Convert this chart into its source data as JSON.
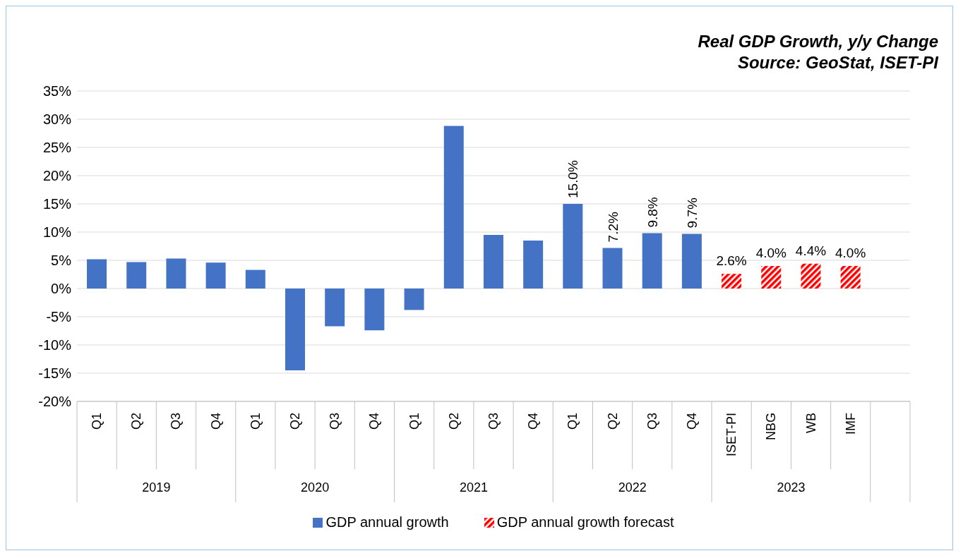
{
  "chart_data": {
    "type": "bar",
    "title": "Real GDP Growth, y/y Change",
    "annotations": [
      "Source: GeoStat, ISET-PI",
      "2019",
      "2020",
      "2021",
      "2022",
      "2023"
    ],
    "categories": [
      "Q1",
      "Q2",
      "Q3",
      "Q4",
      "Q1",
      "Q2",
      "Q3",
      "Q4",
      "Q1",
      "Q2",
      "Q3",
      "Q4",
      "Q1",
      "Q2",
      "Q3",
      "Q4",
      "ISET-PI",
      "NBG",
      "WB",
      "IMF",
      null
    ],
    "series": [
      {
        "name": "GDP annual growth",
        "color": "#4472c4",
        "values": [
          5.2,
          4.7,
          5.3,
          4.6,
          3.3,
          -14.5,
          -6.7,
          -7.4,
          -3.8,
          28.8,
          9.5,
          8.5,
          15.0,
          7.2,
          9.8,
          9.7,
          null,
          null,
          null,
          null,
          null
        ],
        "value_labels": [
          null,
          null,
          null,
          null,
          null,
          null,
          null,
          null,
          null,
          null,
          null,
          null,
          "15.0%",
          "7.2%",
          "9.8%",
          "9.7%",
          null,
          null,
          null,
          null,
          null
        ]
      },
      {
        "name": "GDP annual growth forecast",
        "color": "#ff0000",
        "values": [
          null,
          null,
          null,
          null,
          null,
          null,
          null,
          null,
          null,
          null,
          null,
          null,
          null,
          null,
          null,
          null,
          2.6,
          4.0,
          4.4,
          4.0,
          null
        ],
        "value_labels": [
          null,
          null,
          null,
          null,
          null,
          null,
          null,
          null,
          null,
          null,
          null,
          null,
          null,
          null,
          null,
          null,
          "2.6%",
          "4.0%",
          "4.4%",
          "4.0%",
          null
        ]
      }
    ],
    "ylim": [
      -20,
      35
    ],
    "yticks": [
      {
        "value": -20,
        "label": "-20%"
      },
      {
        "value": -15,
        "label": "-15%"
      },
      {
        "value": -10,
        "label": "-10%"
      },
      {
        "value": -5,
        "label": "-5%"
      },
      {
        "value": 0,
        "label": "0%"
      },
      {
        "value": 5,
        "label": "5%"
      },
      {
        "value": 10,
        "label": "10%"
      },
      {
        "value": 15,
        "label": "15%"
      },
      {
        "value": 20,
        "label": "20%"
      },
      {
        "value": 25,
        "label": "25%"
      },
      {
        "value": 30,
        "label": "30%"
      },
      {
        "value": 35,
        "label": "35%"
      }
    ],
    "grid": "y",
    "legend": "bottom"
  }
}
